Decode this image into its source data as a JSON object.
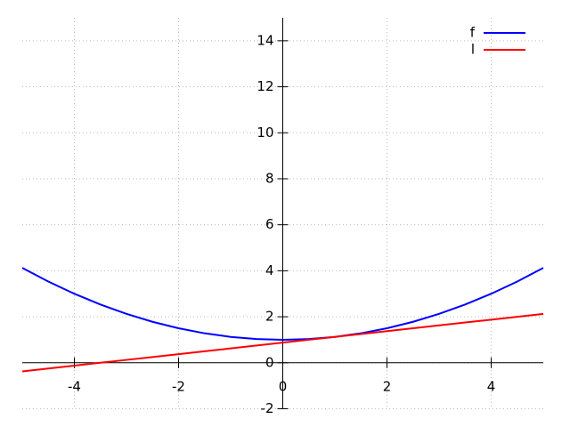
{
  "chart_data": {
    "type": "line",
    "x": [
      -5,
      -4.5,
      -4,
      -3.5,
      -3,
      -2.5,
      -2,
      -1.5,
      -1,
      -0.5,
      0,
      0.5,
      1,
      1.5,
      2,
      2.5,
      3,
      3.5,
      4,
      4.5,
      5
    ],
    "series": [
      {
        "name": "f",
        "color": "#0000ff",
        "values": [
          4.125,
          3.53125,
          3,
          2.53125,
          2.125,
          1.78125,
          1.5,
          1.28125,
          1.125,
          1.03125,
          1,
          1.03125,
          1.125,
          1.28125,
          1.5,
          1.78125,
          2.125,
          2.53125,
          3,
          3.53125,
          4.125
        ]
      },
      {
        "name": "l",
        "color": "#ff0000",
        "values": [
          -0.375,
          -0.25,
          -0.125,
          0,
          0.125,
          0.25,
          0.375,
          0.5,
          0.625,
          0.75,
          0.875,
          1,
          1.125,
          1.25,
          1.375,
          1.5,
          1.625,
          1.75,
          1.875,
          2,
          2.125
        ]
      }
    ],
    "xlim": [
      -5,
      5
    ],
    "ylim": [
      -2,
      15
    ],
    "xticks": [
      -4,
      -2,
      0,
      2,
      4
    ],
    "yticks": [
      -2,
      0,
      2,
      4,
      6,
      8,
      10,
      12,
      14
    ],
    "grid": true,
    "legend": "top-right"
  }
}
